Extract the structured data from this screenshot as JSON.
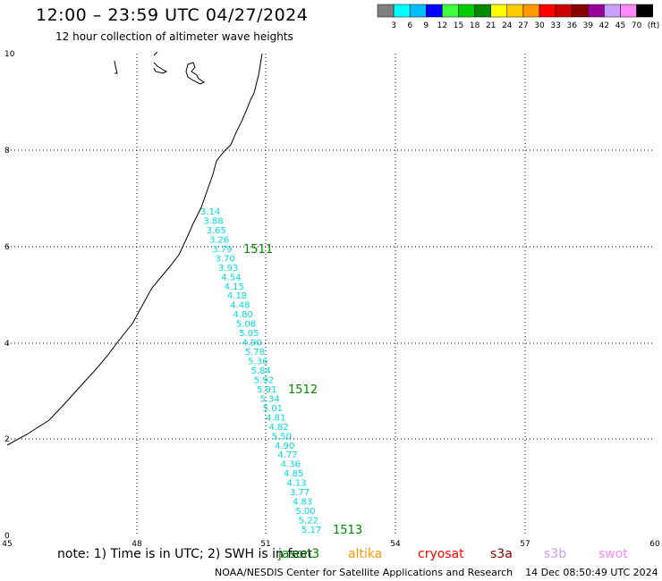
{
  "header": {
    "title": "12:00 – 23:59 UTC 04/27/2024",
    "subtitle": "12 hour collection of altimeter wave heights"
  },
  "colorbar": {
    "unit": "(ft)",
    "labels": [
      "3",
      "6",
      "9",
      "12",
      "15",
      "18",
      "21",
      "24",
      "27",
      "30",
      "33",
      "36",
      "39",
      "42",
      "45",
      "70"
    ],
    "colors": [
      "#808080",
      "#00ffff",
      "#00bfff",
      "#0000ff",
      "#40ff40",
      "#00cc00",
      "#008800",
      "#ffff00",
      "#ffcc00",
      "#ff9900",
      "#ff0000",
      "#cc0000",
      "#880000",
      "#990099",
      "#c8a0ff",
      "#ff88ff",
      "#000000"
    ]
  },
  "axes": {
    "x_ticks": [
      "45",
      "48",
      "51",
      "54",
      "57",
      "60"
    ],
    "y_ticks": [
      "0",
      "2",
      "4",
      "6",
      "8",
      "10"
    ]
  },
  "track": {
    "color": "#00dddd",
    "labels": [
      "3.14",
      "3.88",
      "3.65",
      "3.26",
      "3.79",
      "3.70",
      "3.93",
      "4.54",
      "4.15",
      "4.18",
      "4.48",
      "4.80",
      "5.08",
      "5.05",
      "4.90",
      "5.78",
      "5.36",
      "5.84",
      "5.92",
      "5.91",
      "5.34",
      "5.01",
      "4.81",
      "4.82",
      "5.50",
      "4.90",
      "4.77",
      "4.36",
      "4.85",
      "4.13",
      "3.77",
      "4.83",
      "5.00",
      "5.22",
      "5.17"
    ]
  },
  "pass_labels": {
    "color": "#008800",
    "items": [
      "1511",
      "1512",
      "1513"
    ]
  },
  "footer": {
    "note": "note: 1) Time is in UTC; 2) SWH is in feet",
    "satellites": [
      {
        "name": "jason3",
        "color": "#008800"
      },
      {
        "name": "altika",
        "color": "#ff9900"
      },
      {
        "name": "cryosat",
        "color": "#ff0000"
      },
      {
        "name": "s3a",
        "color": "#880000"
      },
      {
        "name": "s3b",
        "color": "#c8a0ff"
      },
      {
        "name": "swot",
        "color": "#ff88ff"
      }
    ],
    "credit": "NOAA/NESDIS Center for Satellite Applications and Research",
    "timestamp": "14 Dec 08:50:49 UTC 2024"
  }
}
